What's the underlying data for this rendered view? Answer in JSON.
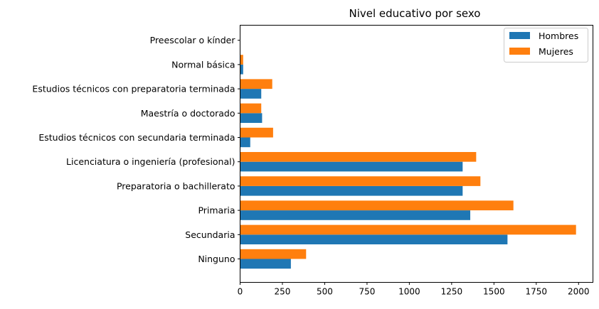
{
  "chart_data": {
    "type": "bar",
    "orientation": "horizontal",
    "title": "Nivel educativo por sexo",
    "xlabel": "",
    "ylabel": "",
    "categories": [
      "Ninguno",
      "Secundaria",
      "Primaria",
      "Preparatoria o bachillerato",
      "Licenciatura o ingeniería (profesional)",
      "Estudios técnicos con secundaria terminada",
      "Maestría o doctorado",
      "Estudios técnicos con preparatoria terminada",
      "Normal básica",
      "Preescolar o kínder"
    ],
    "series": [
      {
        "name": "Hombres",
        "color": "#1f77b4",
        "values": [
          300,
          1580,
          1360,
          1315,
          1315,
          60,
          130,
          125,
          18,
          0
        ]
      },
      {
        "name": "Mujeres",
        "color": "#ff7f0e",
        "values": [
          390,
          1985,
          1615,
          1420,
          1395,
          195,
          125,
          190,
          18,
          0
        ]
      }
    ],
    "xlim": [
      0,
      2085
    ],
    "xticks": [
      "0",
      "250",
      "500",
      "750",
      "1000",
      "1250",
      "1500",
      "1750",
      "2000"
    ],
    "xtick_values": [
      0,
      250,
      500,
      750,
      1000,
      1250,
      1500,
      1750,
      2000
    ],
    "legend": {
      "position": "top-right"
    },
    "grid": false
  }
}
